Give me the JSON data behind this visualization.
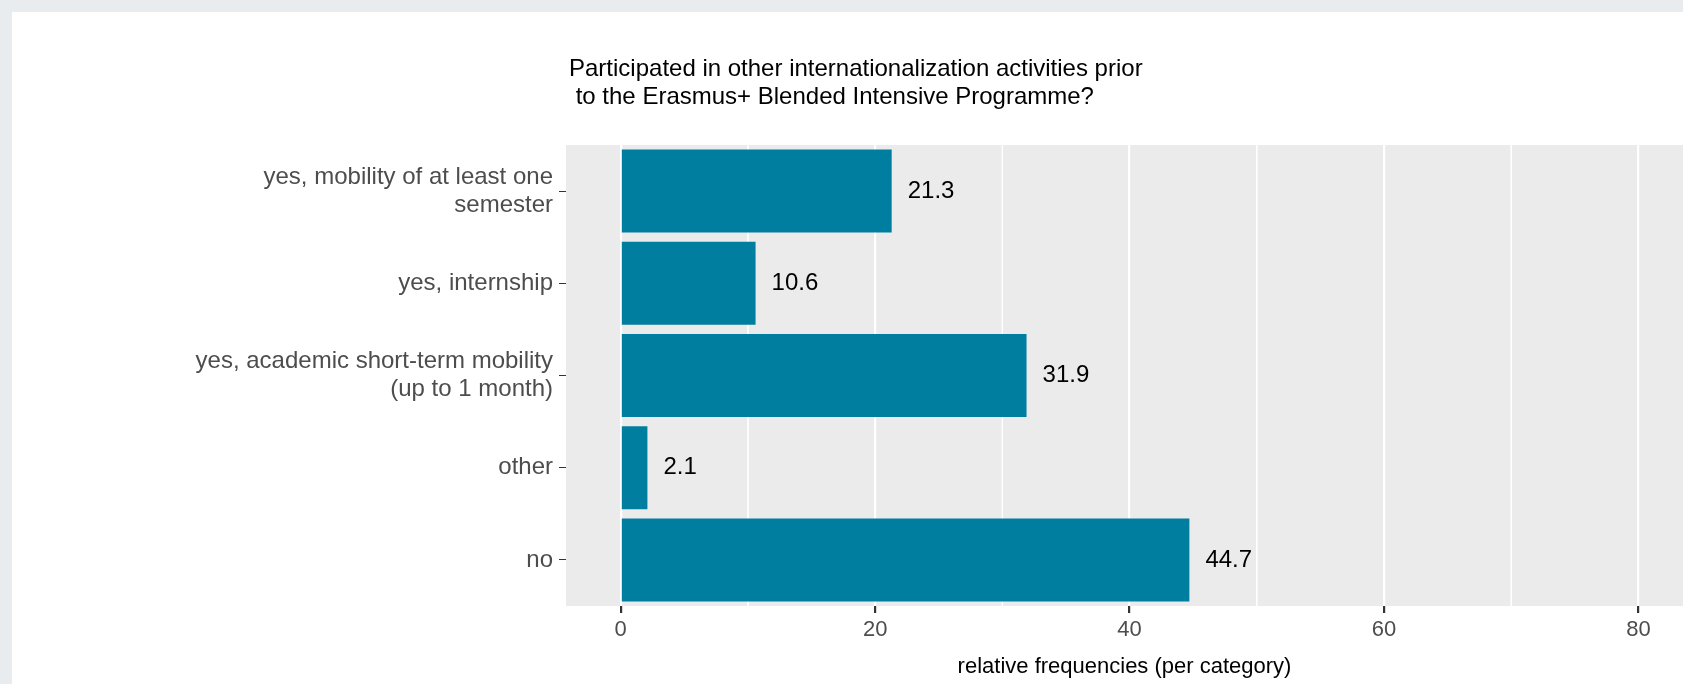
{
  "chart_data": {
    "type": "bar",
    "orientation": "horizontal",
    "title": "Participated in other internationalization activities prior\n to the Erasmus+ Blended Intensive Programme?",
    "xlabel": "relative frequencies (per category)",
    "categories": [
      "yes, mobility of at least one\nsemester",
      "yes, internship",
      "yes, academic short-term mobility\n(up to 1 month)",
      "other",
      "no"
    ],
    "values": [
      21.3,
      10.6,
      31.9,
      2.1,
      44.7
    ],
    "color": "#007e9f",
    "xlim": [
      -4.3,
      83.5
    ],
    "xticks": [
      0,
      20,
      40,
      60,
      80
    ],
    "grid": "x",
    "legend": false,
    "data_labels": true
  }
}
